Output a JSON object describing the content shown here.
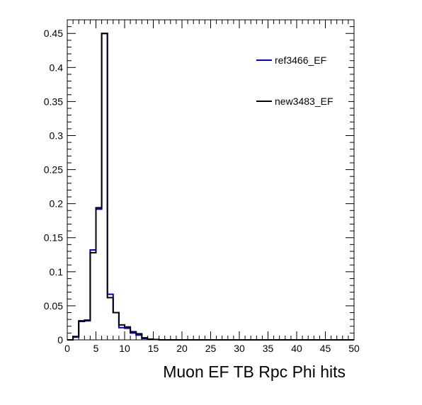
{
  "chart_data": {
    "type": "line",
    "title": "",
    "xlabel": "Muon EF TB Rpc Phi hits",
    "ylabel": "",
    "xlim": [
      0,
      50
    ],
    "ylim": [
      0,
      0.47
    ],
    "xticks": [
      0,
      5,
      10,
      15,
      20,
      25,
      30,
      35,
      40,
      45,
      50
    ],
    "xtick_labels": [
      "0",
      "5",
      "10",
      "15",
      "20",
      "25",
      "30",
      "35",
      "40",
      "45",
      "50"
    ],
    "yticks": [
      0,
      0.05,
      0.1,
      0.15,
      0.2,
      0.25,
      0.3,
      0.35,
      0.4,
      0.45
    ],
    "ytick_labels": [
      "0",
      "0.05",
      "0.1",
      "0.15",
      "0.2",
      "0.25",
      "0.3",
      "0.35",
      "0.4",
      "0.45"
    ],
    "grid": false,
    "legend_position": "top-right",
    "bin_edges": [
      0,
      1,
      2,
      3,
      4,
      5,
      6,
      7,
      8,
      9,
      10,
      11,
      12,
      13,
      14,
      15,
      16,
      17,
      18,
      19,
      20,
      21,
      22,
      23,
      24,
      25,
      26,
      27,
      28,
      29,
      30,
      31,
      32,
      33,
      34,
      35,
      36,
      37,
      38,
      39,
      40,
      41,
      42,
      43,
      44,
      45,
      46,
      47,
      48,
      49,
      50
    ],
    "series": [
      {
        "name": "ref3466_EF",
        "color": "#0000cc",
        "values": [
          0,
          0.004,
          0.027,
          0.028,
          0.132,
          0.192,
          0.45,
          0.067,
          0.04,
          0.018,
          0.017,
          0.01,
          0.007,
          0.002,
          0.001,
          0.0005,
          0,
          0,
          0,
          0,
          0,
          0,
          0,
          0,
          0,
          0,
          0,
          0,
          0,
          0,
          0,
          0,
          0,
          0,
          0,
          0,
          0,
          0,
          0,
          0,
          0,
          0,
          0,
          0,
          0,
          0,
          0,
          0,
          0,
          0
        ]
      },
      {
        "name": "new3483_EF",
        "color": "#000000",
        "values": [
          0,
          0.005,
          0.028,
          0.029,
          0.128,
          0.194,
          0.45,
          0.062,
          0.04,
          0.022,
          0.019,
          0.012,
          0.009,
          0.003,
          0.001,
          0.0005,
          0,
          0,
          0,
          0,
          0,
          0,
          0,
          0,
          0,
          0,
          0,
          0,
          0,
          0,
          0,
          0,
          0,
          0,
          0,
          0,
          0,
          0,
          0,
          0,
          0,
          0,
          0,
          0,
          0,
          0,
          0,
          0,
          0,
          0
        ]
      }
    ]
  }
}
